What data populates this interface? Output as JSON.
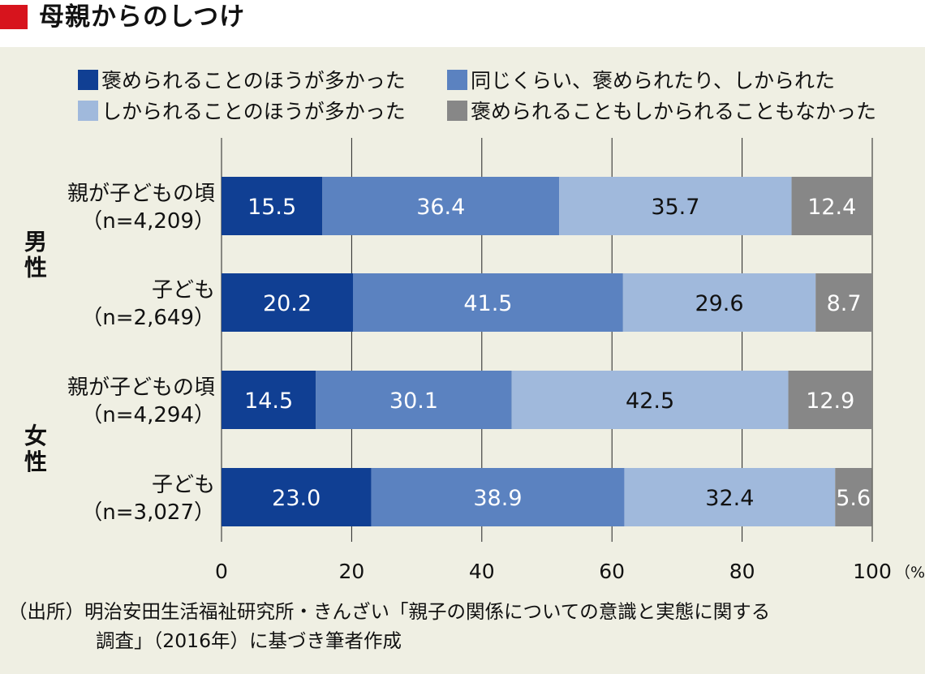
{
  "header": {
    "title": "母親からのしつけ"
  },
  "colors": {
    "praised_more": "#103f93",
    "both": "#5b82c0",
    "scolded_more": "#a0b9dc",
    "neither": "#878787",
    "accent": "#d7141d"
  },
  "chart_data": {
    "type": "bar",
    "orientation": "horizontal",
    "stacked": true,
    "title": "母親からのしつけ",
    "xlim": [
      0,
      100
    ],
    "xticks": [
      "0",
      "20",
      "40",
      "60",
      "80",
      "100"
    ],
    "xunit": "（%）",
    "grid": true,
    "legend_position": "top",
    "groups": [
      {
        "label": "男性",
        "categories": [
          0,
          1
        ]
      },
      {
        "label": "女性",
        "categories": [
          2,
          3
        ]
      }
    ],
    "categories": [
      {
        "line1": "親が子どもの頃",
        "line2": "（n=4,209）"
      },
      {
        "line1": "子ども",
        "line2": "（n=2,649）"
      },
      {
        "line1": "親が子どもの頃",
        "line2": "（n=4,294）"
      },
      {
        "line1": "子ども",
        "line2": "（n=3,027）"
      }
    ],
    "series": [
      {
        "name": "褒められることのほうが多かった",
        "labels": [
          "15.5",
          "20.2",
          "14.5",
          "23.0"
        ],
        "values": [
          15.5,
          20.2,
          14.5,
          23.0
        ]
      },
      {
        "name": "同じくらい、褒められたり、しかられた",
        "labels": [
          "36.4",
          "41.5",
          "30.1",
          "38.9"
        ],
        "values": [
          36.4,
          41.5,
          30.1,
          38.9
        ]
      },
      {
        "name": "しかられることのほうが多かった",
        "labels": [
          "35.7",
          "29.6",
          "42.5",
          "32.4"
        ],
        "values": [
          35.7,
          29.6,
          42.5,
          32.4
        ]
      },
      {
        "name": "褒められることもしかられることもなかった",
        "labels": [
          "12.4",
          "8.7",
          "12.9",
          "5.6"
        ],
        "values": [
          12.4,
          8.7,
          12.9,
          5.6
        ]
      }
    ]
  },
  "source": {
    "line1": "（出所）明治安田生活福祉研究所・きんざい「親子の関係についての意識と実態に関する",
    "line2": "調査」（2016年）に基づき筆者作成"
  }
}
